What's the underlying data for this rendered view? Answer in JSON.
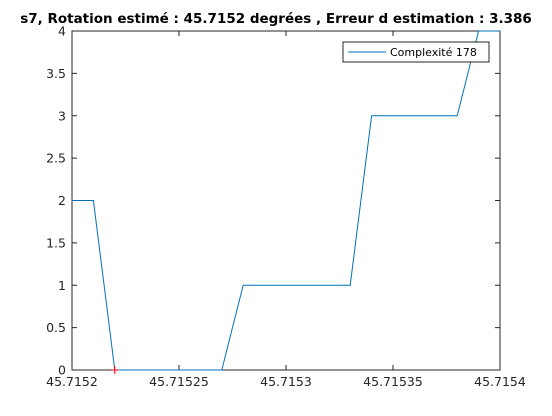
{
  "chart_data": {
    "type": "line",
    "title": "s7, Rotation estimé : 45.7152 degrées , Erreur d estimation : 3.386",
    "xlabel": "",
    "ylabel": "",
    "xlim": [
      45.7152,
      45.7154
    ],
    "ylim": [
      0,
      4
    ],
    "x_ticks": [
      45.7152,
      45.71525,
      45.7153,
      45.71535,
      45.7154
    ],
    "x_tick_labels": [
      "45.7152",
      "45.71525",
      "45.7153",
      "45.71535",
      "45.7154"
    ],
    "y_ticks": [
      0,
      0.5,
      1,
      1.5,
      2,
      2.5,
      3,
      3.5,
      4
    ],
    "y_tick_labels": [
      "0",
      "0.5",
      "1",
      "1.5",
      "2",
      "2.5",
      "3",
      "3.5",
      "4"
    ],
    "grid": false,
    "legend_position": "top-right",
    "series": [
      {
        "name": "Complexité 178",
        "color": "#0072bd",
        "x": [
          45.7152,
          45.71521,
          45.71522,
          45.71523,
          45.71524,
          45.71525,
          45.71526,
          45.71527,
          45.71528,
          45.71529,
          45.7153,
          45.71531,
          45.71532,
          45.71533,
          45.71534,
          45.71535,
          45.71536,
          45.71537,
          45.71538,
          45.71539,
          45.7154
        ],
        "y": [
          2,
          2,
          0,
          0,
          0,
          0,
          0,
          0,
          1,
          1,
          1,
          1,
          1,
          1,
          3,
          3,
          3,
          3,
          3,
          4,
          4
        ]
      }
    ],
    "marker": {
      "x": 45.71522,
      "y": 0,
      "symbol": "+",
      "color": "#ff0000"
    }
  }
}
